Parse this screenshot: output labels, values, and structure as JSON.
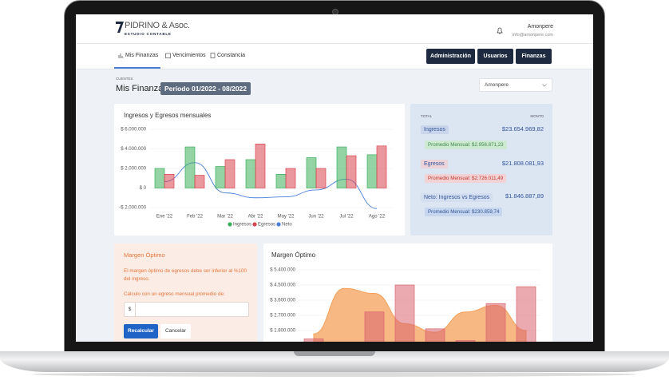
{
  "header": {
    "brand": "PIDRINO & Asoc.",
    "tagline": "ESTUDIO CONTABLE",
    "user": "Amonpere",
    "email": "info@amonpere.com"
  },
  "nav": {
    "tabs": [
      "Mis Finanzas",
      "Vencimientos",
      "Constancia"
    ],
    "buttons": [
      "Administración",
      "Usuarios",
      "Finanzas"
    ]
  },
  "page": {
    "breadcrumb": "CUENTES",
    "title": "Mis Finanzas",
    "period": "Período 01/2022 - 08/2022",
    "select": "Amonpere"
  },
  "summary": {
    "head": [
      "TOTAL",
      "MONTO"
    ],
    "rows": [
      {
        "label": "Ingresos",
        "amount": "$23.654.969,82",
        "average": "Promedio Mensual: $2.956.871,23"
      },
      {
        "label": "Egresos",
        "amount": "$21.808.081,93",
        "average": "Promedio Mensual: $2.726.011,49"
      },
      {
        "label": "Neto: Ingresos vs Egresos",
        "amount": "$1.846.887,89",
        "average": "Promedio Mensual: $230.859,74"
      }
    ]
  },
  "margin_form": {
    "title": "Margen Óptimo",
    "text": "El margen óptimo de egresos debe ser inferior al %100 del ingreso.",
    "prompt": "Cálculo con un egreso mensual promedio de:",
    "prefix": "$",
    "buttons": [
      "Recalcular",
      "Cancelar"
    ]
  },
  "chart_data": [
    {
      "type": "bar",
      "title": "Ingresos y Egresos mensuales",
      "categories": [
        "Ene '22",
        "Feb '22",
        "Mar '22",
        "Abr '22",
        "May '22",
        "Jun '22",
        "Jul '22",
        "Ago '22"
      ],
      "series": [
        {
          "name": "Ingresos",
          "color": "#3cae5a",
          "values": [
            2000000,
            4200000,
            2200000,
            2900000,
            1400000,
            3100000,
            4200000,
            3400000
          ]
        },
        {
          "name": "Egresos",
          "color": "#d9444f",
          "values": [
            1400000,
            1300000,
            2900000,
            4500000,
            2000000,
            2000000,
            3300000,
            4300000
          ]
        },
        {
          "name": "Neto",
          "type": "line",
          "color": "#4a7fd9",
          "values": [
            650000,
            2600000,
            -500000,
            -1000000,
            -900000,
            -200000,
            900000,
            -2100000
          ]
        }
      ],
      "ylim": [
        -2000000,
        6000000
      ],
      "yticks": [
        {
          "value": -2000000,
          "label": "-$ 2.000.000"
        },
        {
          "value": 0,
          "label": "$ 0"
        },
        {
          "value": 2000000,
          "label": "$ 2.000.000"
        },
        {
          "value": 4000000,
          "label": "$ 4.000.000"
        },
        {
          "value": 6000000,
          "label": "$ 6.000.000"
        }
      ],
      "grid": true
    },
    {
      "type": "bar",
      "title": "Margen Óptimo",
      "series": [
        {
          "type": "area",
          "color": "#f5a05a",
          "values": [
            1600000,
            4300000,
            4000000,
            2200000,
            1700000,
            2900000,
            3300000,
            1800000
          ]
        },
        {
          "color": "#d9646f",
          "values": [
            1300000,
            1100000,
            2900000,
            4500000,
            1900000,
            1200000,
            3400000,
            4400000
          ]
        }
      ],
      "ylim": [
        0,
        5400000
      ],
      "yticks": [
        {
          "value": 1800000,
          "label": "$ 1.800.000"
        },
        {
          "value": 2700000,
          "label": "$ 2.700.000"
        },
        {
          "value": 3600000,
          "label": "$ 3.600.000"
        },
        {
          "value": 4500000,
          "label": "$ 4.500.000"
        },
        {
          "value": 5400000,
          "label": "$ 5.400.000"
        }
      ],
      "grid": true
    }
  ]
}
